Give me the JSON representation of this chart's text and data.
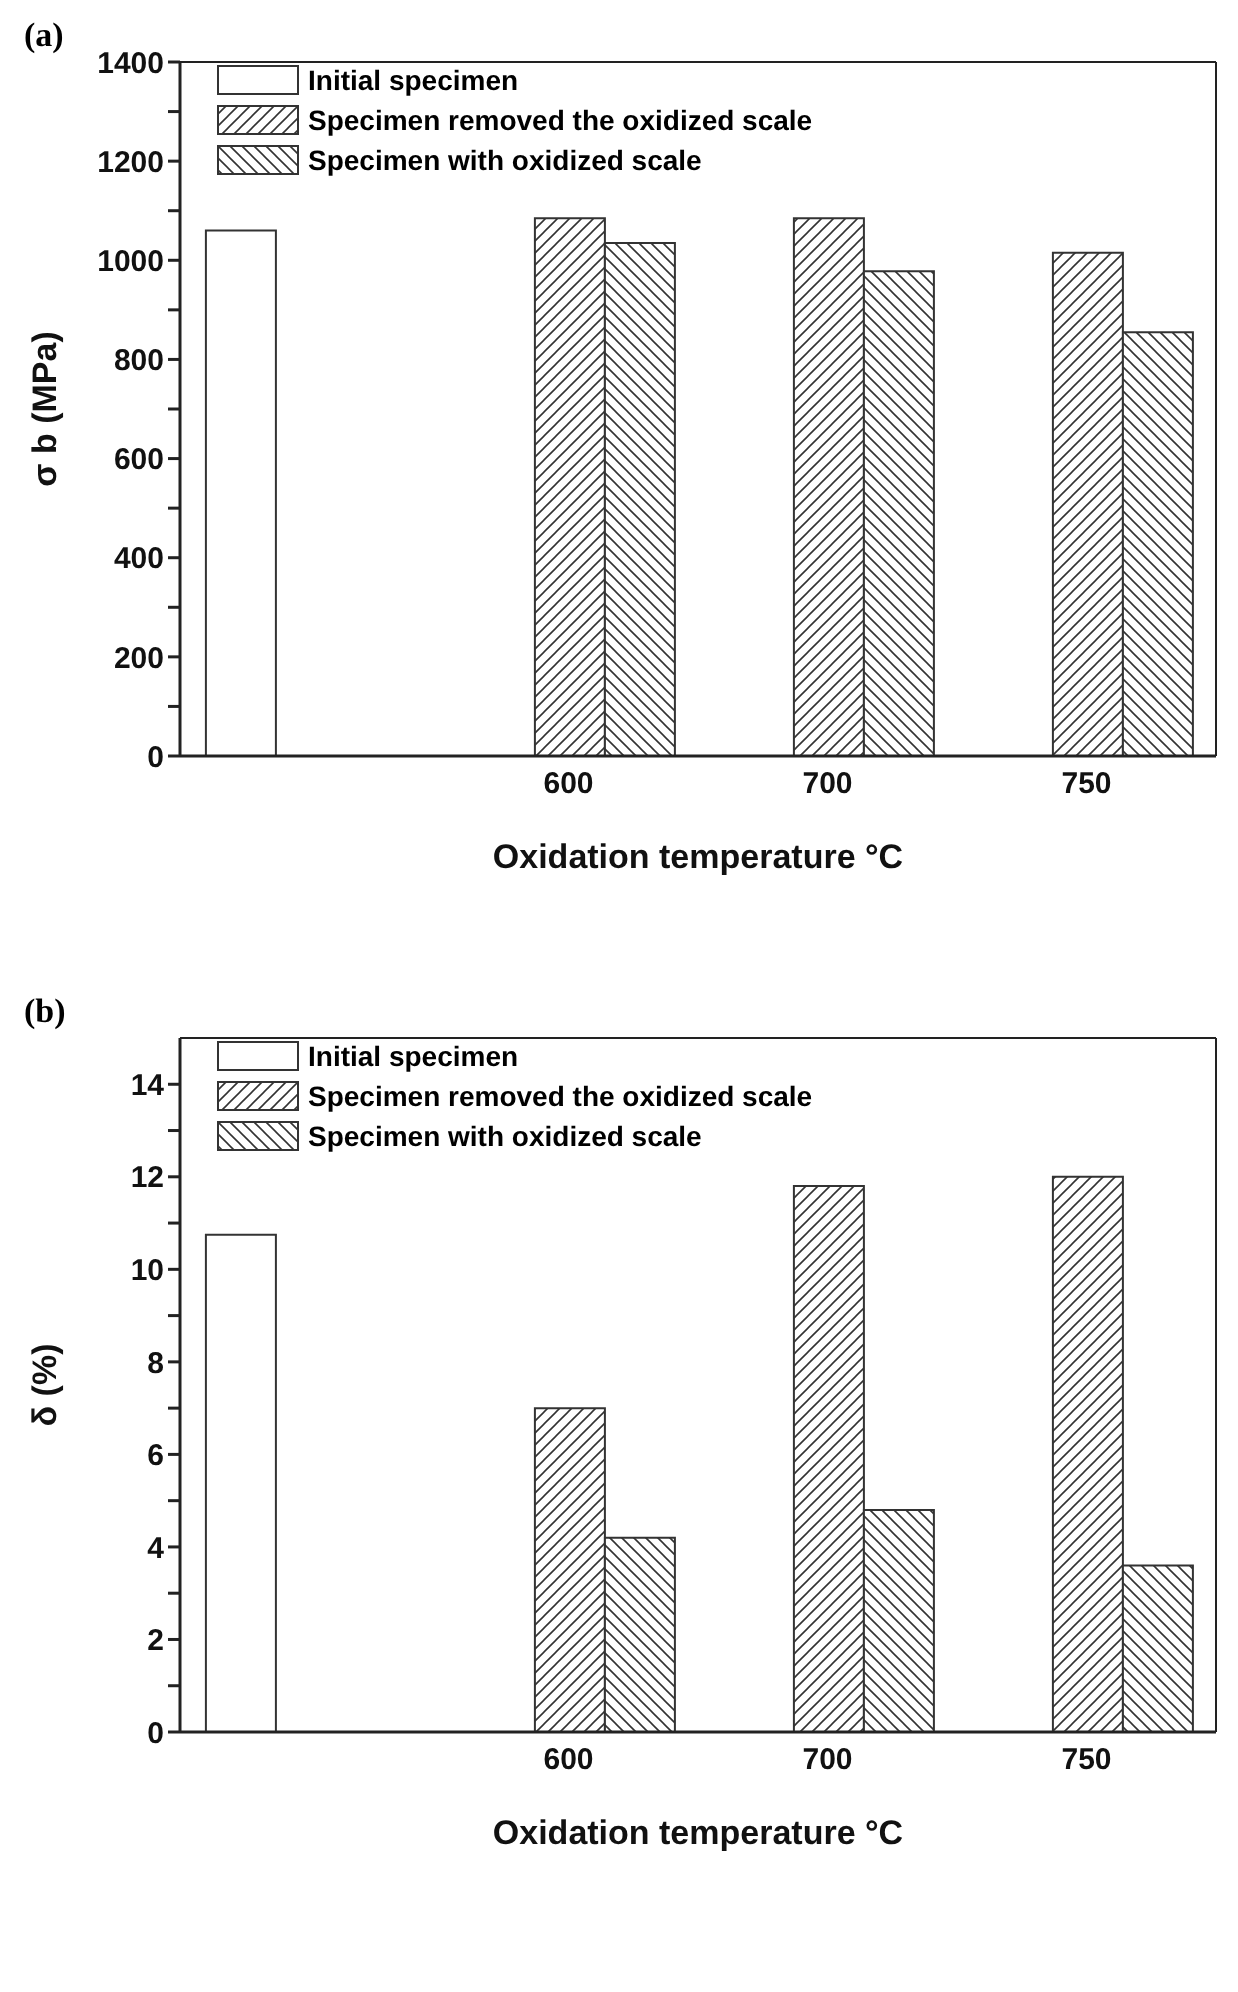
{
  "chart_data": [
    {
      "type": "bar",
      "title": "(a)",
      "xlabel": "Oxidation temperature °C",
      "ylabel": "σ b (MPa)",
      "categories": [
        null,
        "600",
        "700",
        "750"
      ],
      "series": [
        {
          "name": "Initial specimen",
          "color": "#333333",
          "values": [
            1060,
            null,
            null,
            null
          ]
        },
        {
          "name": "Specimen removed the oxidized scale",
          "color": "#333333",
          "values": [
            null,
            1085,
            1085,
            1015
          ]
        },
        {
          "name": "Specimen with oxidized scale",
          "color": "#333333",
          "values": [
            null,
            1035,
            978,
            855
          ]
        }
      ],
      "ylim": [
        0,
        1400
      ],
      "yticks": [
        0,
        {
          "value": 100,
          "label": null
        },
        200,
        {
          "value": 300,
          "label": null
        },
        400,
        {
          "value": 500,
          "label": null
        },
        600,
        {
          "value": 700,
          "label": null
        },
        800,
        {
          "value": 900,
          "label": null
        },
        1000,
        {
          "value": 1100,
          "label": null
        },
        1200,
        {
          "value": 1300,
          "label": null
        },
        1400
      ],
      "grid": false,
      "legend": "top left"
    },
    {
      "type": "bar",
      "title": "(b)",
      "xlabel": "Oxidation temperature °C",
      "ylabel": "δ (%)",
      "categories": [
        null,
        "600",
        "700",
        "750"
      ],
      "series": [
        {
          "name": "Initial specimen",
          "color": "#333333",
          "values": [
            10.75,
            null,
            null,
            null
          ]
        },
        {
          "name": "Specimen removed the oxidized scale",
          "color": "#333333",
          "values": [
            null,
            7.0,
            11.8,
            12.0
          ]
        },
        {
          "name": "Specimen with oxidized scale",
          "color": "#333333",
          "values": [
            null,
            4.2,
            4.8,
            3.6
          ]
        }
      ],
      "ylim": [
        0,
        15
      ],
      "yticks": [
        0,
        {
          "value": 1,
          "label": null
        },
        2,
        {
          "value": 3,
          "label": null
        },
        4,
        {
          "value": 5,
          "label": null
        },
        6,
        {
          "value": 7,
          "label": null
        },
        8,
        {
          "value": 9,
          "label": null
        },
        10,
        {
          "value": 11,
          "label": null
        },
        12,
        {
          "value": 13,
          "label": null
        },
        14
      ],
      "grid": false,
      "legend": "top left"
    }
  ]
}
